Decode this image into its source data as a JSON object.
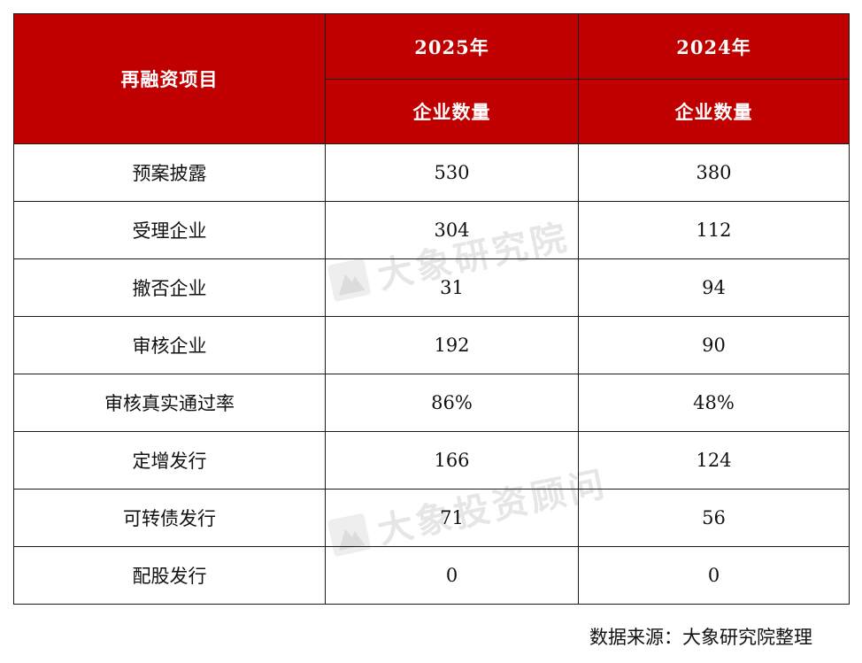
{
  "table": {
    "header": {
      "row_label": "再融资项目",
      "years": [
        "2025年",
        "2024年"
      ],
      "metric": "企业数量"
    },
    "rows": [
      {
        "label": "预案披露",
        "v2025": "530",
        "v2024": "380"
      },
      {
        "label": "受理企业",
        "v2025": "304",
        "v2024": "112"
      },
      {
        "label": "撤否企业",
        "v2025": "31",
        "v2024": "94"
      },
      {
        "label": "审核企业",
        "v2025": "192",
        "v2024": "90"
      },
      {
        "label": "审核真实通过率",
        "v2025": "86%",
        "v2024": "48%"
      },
      {
        "label": "定增发行",
        "v2025": "166",
        "v2024": "124"
      },
      {
        "label": "可转债发行",
        "v2025": "71",
        "v2024": "56"
      },
      {
        "label": "配股发行",
        "v2025": "0",
        "v2024": "0"
      }
    ]
  },
  "watermarks": [
    "大象研究院",
    "大象投资顾问"
  ],
  "footer": {
    "source": "数据来源：大象研究院整理"
  },
  "colors": {
    "header_bg": "#c00000",
    "header_text": "#ffffff",
    "border": "#1a1a1a",
    "watermark": "#e6e6e6"
  }
}
